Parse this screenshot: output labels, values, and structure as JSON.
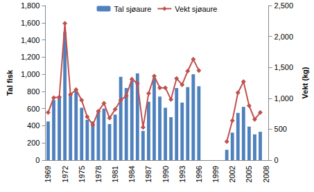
{
  "chart_data": {
    "type": "bar",
    "categories": [
      1969,
      null,
      null,
      1972,
      null,
      null,
      1975,
      null,
      null,
      1978,
      null,
      null,
      1981,
      null,
      null,
      1984,
      null,
      null,
      1987,
      null,
      null,
      1990,
      null,
      null,
      1993,
      null,
      null,
      1996,
      null,
      null,
      1999,
      null,
      null,
      2002,
      null,
      null,
      2005,
      null,
      null,
      2008
    ],
    "y_label": "Tal fisk",
    "y2_label": "Vekt (kg)",
    "ylim": [
      0,
      1800
    ],
    "yticks": [
      0,
      200,
      400,
      600,
      800,
      1000,
      1200,
      1400,
      1600,
      1800
    ],
    "y2lim": [
      0,
      2500
    ],
    "y2ticks": [
      0,
      500,
      1000,
      1500,
      2000,
      2500
    ],
    "grid": false,
    "legend": "top",
    "series": [
      {
        "name": "Tal sjøaure",
        "type": "bar",
        "color": "#4f81bd",
        "values": [
          450,
          700,
          730,
          1490,
          780,
          800,
          610,
          470,
          450,
          580,
          600,
          420,
          530,
          970,
          840,
          920,
          1010,
          340,
          680,
          960,
          740,
          610,
          500,
          840,
          670,
          850,
          1000,
          860,
          null,
          null,
          null,
          null,
          120,
          320,
          550,
          620,
          390,
          300,
          330,
          null
        ]
      },
      {
        "name": "Vekt sjøaure",
        "type": "line",
        "axis": "y2",
        "color": "#c0504d",
        "marker": "diamond",
        "values": [
          770,
          1010,
          1020,
          2210,
          1060,
          1140,
          970,
          700,
          570,
          790,
          920,
          680,
          820,
          970,
          1040,
          1310,
          1240,
          530,
          1080,
          1360,
          1170,
          1170,
          980,
          1320,
          1220,
          1440,
          1630,
          1450,
          null,
          null,
          null,
          null,
          300,
          640,
          1090,
          1270,
          880,
          660,
          770,
          null
        ]
      }
    ]
  }
}
